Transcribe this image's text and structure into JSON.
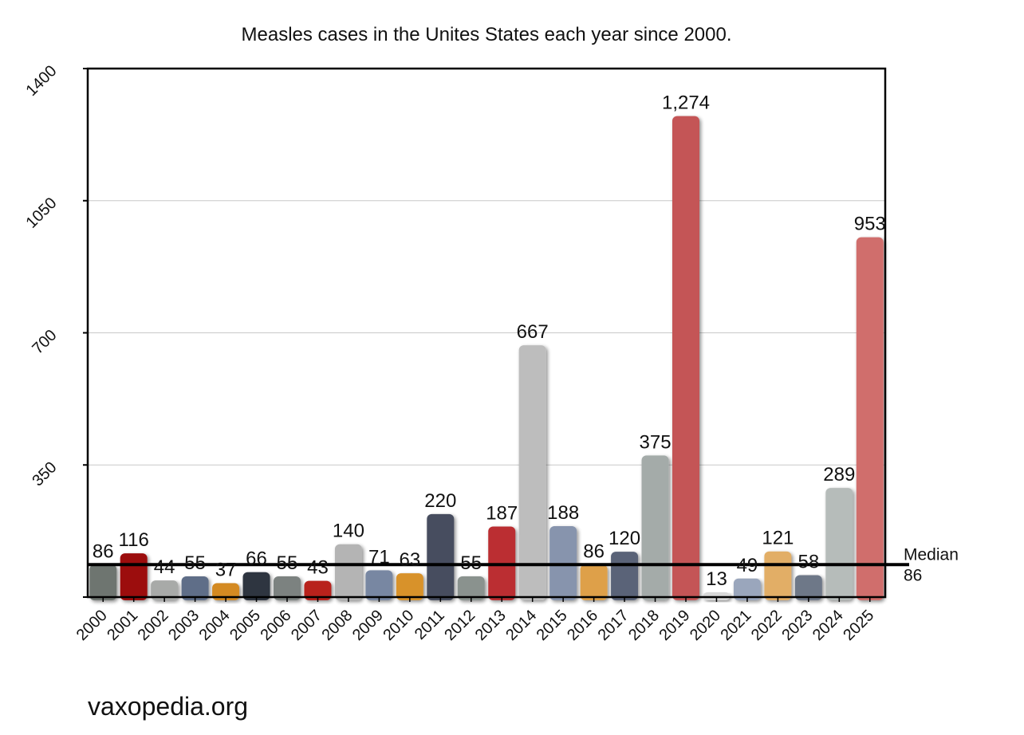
{
  "chart_data": {
    "type": "bar",
    "title": "Measles cases in the Unites States each year since 2000.",
    "xlabel": "",
    "ylabel": "",
    "ylim": [
      0,
      1400
    ],
    "yticks": [
      350,
      700,
      1050,
      1400
    ],
    "grid": true,
    "categories": [
      "2000",
      "2001",
      "2002",
      "2003",
      "2004",
      "2005",
      "2006",
      "2007",
      "2008",
      "2009",
      "2010",
      "2011",
      "2012",
      "2013",
      "2014",
      "2015",
      "2016",
      "2017",
      "2018",
      "2019",
      "2020",
      "2021",
      "2022",
      "2023",
      "2024",
      "2025"
    ],
    "values": [
      86,
      116,
      44,
      55,
      37,
      66,
      55,
      43,
      140,
      71,
      63,
      220,
      55,
      187,
      667,
      188,
      86,
      120,
      375,
      1274,
      13,
      49,
      121,
      58,
      289,
      953
    ],
    "data_labels": [
      "86",
      "116",
      "44",
      "55",
      "37",
      "66",
      "55",
      "43",
      "140",
      "71",
      "63",
      "220",
      "55",
      "187",
      "667",
      "188",
      "86",
      "120",
      "375",
      "1,274",
      "13",
      "49",
      "121",
      "58",
      "289",
      "953"
    ],
    "bar_colors": [
      "#6e7570",
      "#9c1010",
      "#a8aaa8",
      "#5e6e88",
      "#d48a20",
      "#2e3440",
      "#7c8280",
      "#b8221f",
      "#b4b4b4",
      "#7887a2",
      "#d8922c",
      "#464e5e",
      "#8a928e",
      "#bb2f30",
      "#bdbdbd",
      "#8794ad",
      "#dea04a",
      "#5a6478",
      "#a4aba9",
      "#c45456",
      "#d8d8d8",
      "#9aa6bc",
      "#e2ae66",
      "#6e7888",
      "#b6bcba",
      "#d06e6c"
    ],
    "median": {
      "value": 86,
      "label": "Median",
      "value_label": "86"
    }
  },
  "watermark": "vaxopedia.org"
}
